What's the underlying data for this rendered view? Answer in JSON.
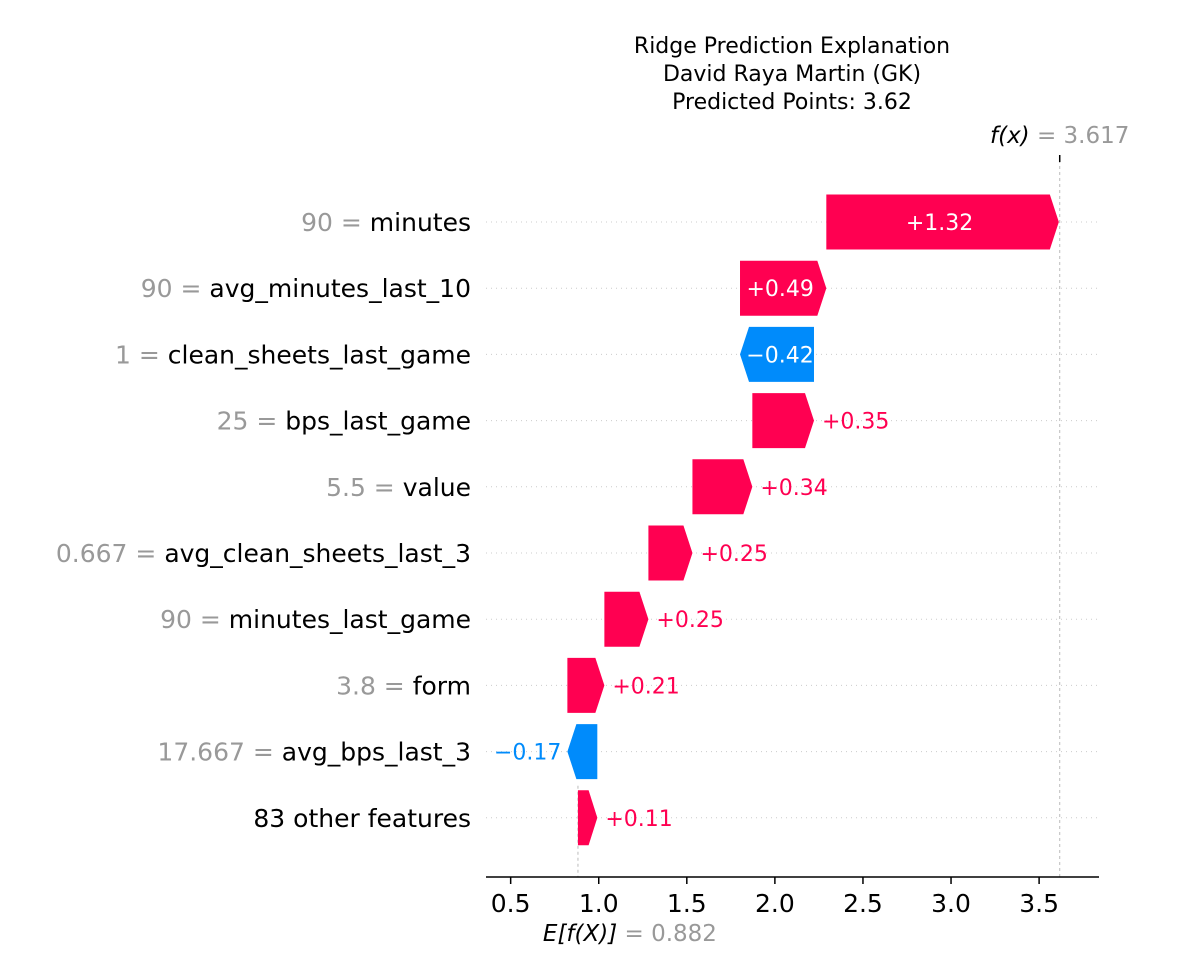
{
  "chart_data": {
    "type": "waterfall",
    "title_lines": [
      "Ridge Prediction Explanation",
      "David Raya Martin (GK)",
      "Predicted Points: 3.62"
    ],
    "base_value": 0.882,
    "base_label": "E[f(X)]",
    "base_value_text": "0.882",
    "output_value": 3.617,
    "output_label": "f(x)",
    "output_value_text": "3.617",
    "xlim": [
      0.36,
      3.84
    ],
    "xticks": [
      0.5,
      1.0,
      1.5,
      2.0,
      2.5,
      3.0,
      3.5
    ],
    "xtick_labels": [
      "0.5",
      "1.0",
      "1.5",
      "2.0",
      "2.5",
      "3.0",
      "3.5"
    ],
    "features": [
      {
        "value_text": "90",
        "name": "minutes",
        "contribution": 1.32,
        "label": "+1.32"
      },
      {
        "value_text": "90",
        "name": "avg_minutes_last_10",
        "contribution": 0.49,
        "label": "+0.49"
      },
      {
        "value_text": "1",
        "name": "clean_sheets_last_game",
        "contribution": -0.42,
        "label": "−0.42"
      },
      {
        "value_text": "25",
        "name": "bps_last_game",
        "contribution": 0.35,
        "label": "+0.35"
      },
      {
        "value_text": "5.5",
        "name": "value",
        "contribution": 0.34,
        "label": "+0.34"
      },
      {
        "value_text": "0.667",
        "name": "avg_clean_sheets_last_3",
        "contribution": 0.25,
        "label": "+0.25"
      },
      {
        "value_text": "90",
        "name": "minutes_last_game",
        "contribution": 0.25,
        "label": "+0.25"
      },
      {
        "value_text": "3.8",
        "name": "form",
        "contribution": 0.21,
        "label": "+0.21"
      },
      {
        "value_text": "17.667",
        "name": "avg_bps_last_3",
        "contribution": -0.17,
        "label": "−0.17"
      },
      {
        "value_text": "",
        "name": "83 other features",
        "contribution": 0.11,
        "label": "+0.11"
      }
    ],
    "colors": {
      "positive": "#ff0051",
      "negative": "#008bfb",
      "feature_value": "#999999",
      "text": "#000000",
      "gridline": "#cccccc"
    }
  }
}
